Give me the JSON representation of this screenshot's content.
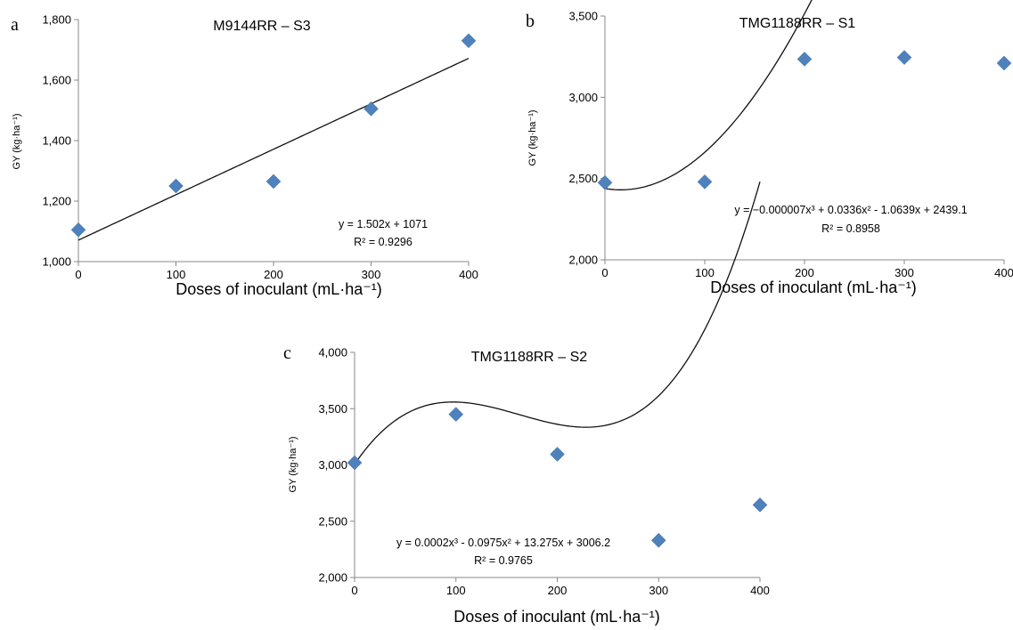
{
  "chart_data": [
    {
      "type": "scatter",
      "panel": "a",
      "title": "M9144RR – S3",
      "xlabel": "Doses of inoculant (mL·ha⁻¹)",
      "ylabel": "GY (kg·ha⁻¹)",
      "xlim": [
        0,
        400
      ],
      "ylim": [
        1000,
        1800
      ],
      "xticks": [
        0,
        100,
        200,
        300,
        400
      ],
      "yticks": [
        1000,
        1200,
        1400,
        1600,
        1800
      ],
      "xtick_labels": [
        "0",
        "100",
        "200",
        "300",
        "400"
      ],
      "ytick_labels": [
        "1,000",
        "1,200",
        "1,400",
        "1,600",
        "1,800"
      ],
      "grid": false,
      "points": {
        "x": [
          0,
          100,
          200,
          300,
          400
        ],
        "y": [
          1105,
          1250,
          1265,
          1505,
          1730
        ]
      },
      "trend": {
        "kind": "linear",
        "coef": [
          1.502,
          1071
        ]
      },
      "equation": "y = 1.502x + 1071",
      "r2_label": "R² = 0.9296",
      "marker_color": "#4f81bd"
    },
    {
      "type": "scatter",
      "panel": "b",
      "title": "TMG1188RR – S1",
      "xlabel": "Doses of inoculant (mL·ha⁻¹)",
      "ylabel": "GY (kg·ha⁻¹)",
      "xlim": [
        0,
        400
      ],
      "ylim": [
        2000,
        3500
      ],
      "xticks": [
        0,
        100,
        200,
        300,
        400
      ],
      "yticks": [
        2000,
        2500,
        3000,
        3500
      ],
      "xtick_labels": [
        "0",
        "100",
        "200",
        "300",
        "400"
      ],
      "ytick_labels": [
        "2,000",
        "2,500",
        "3,000",
        "3,500"
      ],
      "grid": false,
      "points": {
        "x": [
          0,
          100,
          200,
          300,
          400
        ],
        "y": [
          2475,
          2480,
          3235,
          3245,
          3210
        ]
      },
      "trend": {
        "kind": "cubic",
        "coef": [
          -7e-06,
          0.0336,
          -1.0639,
          2439.1
        ]
      },
      "equation": "y = −0.000007x³ + 0.0336x² - 1.0639x + 2439.1",
      "r2_label": "R² = 0.8958",
      "marker_color": "#4f81bd"
    },
    {
      "type": "scatter",
      "panel": "c",
      "title": "TMG1188RR – S2",
      "xlabel": "Doses of inoculant (mL·ha⁻¹)",
      "ylabel": "GY (kg·ha⁻¹)",
      "xlim": [
        0,
        400
      ],
      "ylim": [
        2000,
        4000
      ],
      "xticks": [
        0,
        100,
        200,
        300,
        400
      ],
      "yticks": [
        2000,
        2500,
        3000,
        3500,
        4000
      ],
      "xtick_labels": [
        "0",
        "100",
        "200",
        "300",
        "400"
      ],
      "ytick_labels": [
        "2,000",
        "2,500",
        "3,000",
        "3,500",
        "4,000"
      ],
      "grid": false,
      "points": {
        "x": [
          0,
          100,
          200,
          300,
          400
        ],
        "y": [
          3020,
          3450,
          3095,
          2330,
          2645
        ]
      },
      "trend": {
        "kind": "cubic",
        "coef": [
          0.0002,
          -0.0975,
          13.275,
          3006.2
        ]
      },
      "equation": "y = 0.0002x³ - 0.0975x² + 13.275x + 3006.2",
      "r2_label": "R² = 0.9765",
      "marker_color": "#4f81bd"
    }
  ]
}
